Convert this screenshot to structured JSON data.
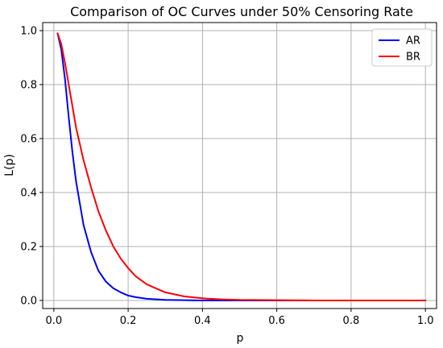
{
  "chart_data": {
    "type": "line",
    "title": "Comparison of OC Curves under 50% Censoring Rate",
    "xlabel": "p",
    "ylabel": "L(p)",
    "xlim": [
      -0.03,
      1.03
    ],
    "ylim": [
      -0.03,
      1.03
    ],
    "xticks": [
      0.0,
      0.2,
      0.4,
      0.6,
      0.8,
      1.0
    ],
    "xtick_labels": [
      "0.0",
      "0.2",
      "0.4",
      "0.6",
      "0.8",
      "1.0"
    ],
    "yticks": [
      0.0,
      0.2,
      0.4,
      0.6,
      0.8,
      1.0
    ],
    "ytick_labels": [
      "0.0",
      "0.2",
      "0.4",
      "0.6",
      "0.8",
      "1.0"
    ],
    "grid": true,
    "legend_position": "top-right",
    "series": [
      {
        "name": "AR",
        "color": "#0000ff",
        "x": [
          0.01,
          0.02,
          0.03,
          0.04,
          0.05,
          0.06,
          0.08,
          0.1,
          0.12,
          0.14,
          0.16,
          0.18,
          0.2,
          0.22,
          0.25,
          0.3,
          0.35,
          0.4,
          0.5,
          0.6,
          0.7,
          0.8,
          0.9,
          1.0
        ],
        "y": [
          0.99,
          0.93,
          0.82,
          0.68,
          0.55,
          0.44,
          0.28,
          0.18,
          0.11,
          0.07,
          0.045,
          0.03,
          0.018,
          0.012,
          0.006,
          0.002,
          0.001,
          0.0,
          0.0,
          0.0,
          0.0,
          0.0,
          0.0,
          0.0
        ]
      },
      {
        "name": "BR",
        "color": "#ff0000",
        "x": [
          0.01,
          0.02,
          0.03,
          0.04,
          0.05,
          0.06,
          0.08,
          0.1,
          0.12,
          0.14,
          0.16,
          0.18,
          0.2,
          0.22,
          0.25,
          0.3,
          0.35,
          0.4,
          0.45,
          0.5,
          0.6,
          0.7,
          0.8,
          0.9,
          1.0
        ],
        "y": [
          0.99,
          0.95,
          0.88,
          0.8,
          0.72,
          0.64,
          0.52,
          0.42,
          0.33,
          0.26,
          0.2,
          0.155,
          0.12,
          0.09,
          0.06,
          0.03,
          0.015,
          0.008,
          0.004,
          0.002,
          0.001,
          0.0,
          0.0,
          0.0,
          0.0
        ]
      }
    ]
  }
}
